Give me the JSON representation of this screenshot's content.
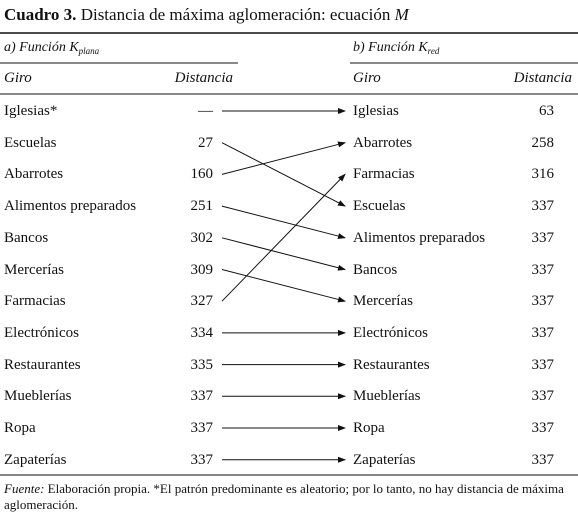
{
  "title": {
    "label": "Cuadro 3.",
    "text": "Distancia de máxima aglomeración: ecuación",
    "variable": "M"
  },
  "panels": [
    {
      "heading": "a) Función K",
      "subscript": "plana",
      "columns": [
        "Giro",
        "Distancia"
      ],
      "rows": [
        [
          "Iglesias*",
          "—"
        ],
        [
          "Escuelas",
          27
        ],
        [
          "Abarrotes",
          160
        ],
        [
          "Alimentos preparados",
          251
        ],
        [
          "Bancos",
          302
        ],
        [
          "Mercerías",
          309
        ],
        [
          "Farmacias",
          327
        ],
        [
          "Electrónicos",
          334
        ],
        [
          "Restaurantes",
          335
        ],
        [
          "Mueblerías",
          337
        ],
        [
          "Ropa",
          337
        ],
        [
          "Zapaterías",
          337
        ]
      ]
    },
    {
      "heading": "b) Función K",
      "subscript": "red",
      "columns": [
        "Giro",
        "Distancia"
      ],
      "rows": [
        [
          "Iglesias",
          63
        ],
        [
          "Abarrotes",
          258
        ],
        [
          "Farmacias",
          316
        ],
        [
          "Escuelas",
          337
        ],
        [
          "Alimentos preparados",
          337
        ],
        [
          "Bancos",
          337
        ],
        [
          "Mercerías",
          337
        ],
        [
          "Electrónicos",
          337
        ],
        [
          "Restaurantes",
          337
        ],
        [
          "Mueblerías",
          337
        ],
        [
          "Ropa",
          337
        ],
        [
          "Zapaterías",
          337
        ]
      ]
    }
  ],
  "footer": {
    "label": "Fuente:",
    "text": "Elaboración propia. *El patrón predominante es aleatorio; por lo tanto, no hay distancia de máxima aglomeración."
  }
}
